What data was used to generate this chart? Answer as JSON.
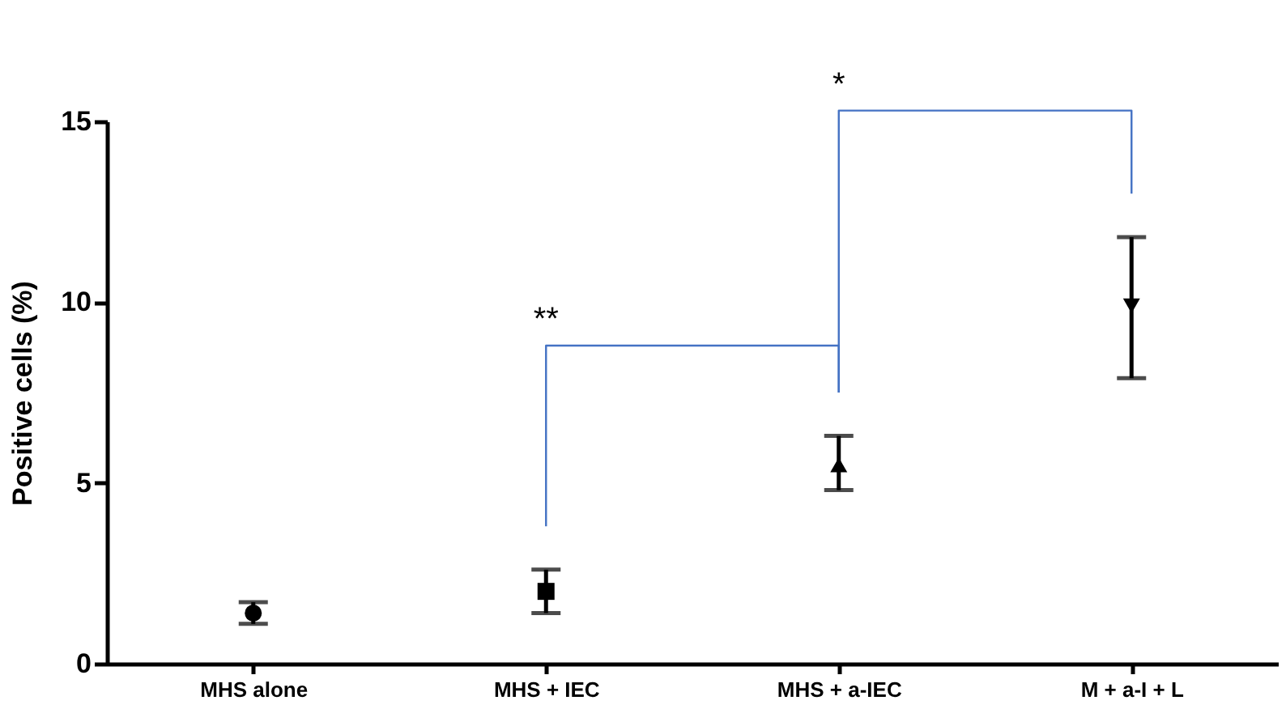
{
  "chart_data": {
    "type": "scatter",
    "ylabel": "Positive cells  (%)",
    "categories": [
      "MHS alone",
      "MHS + IEC",
      "MHS + a-IEC",
      "M + a-I + L"
    ],
    "series": [
      {
        "color": "#000000",
        "marker": "circle",
        "values": [
          1.4,
          null,
          null,
          null
        ],
        "errors": [
          [
            1.1,
            1.7
          ],
          null,
          null,
          null
        ]
      },
      {
        "color": "#000000",
        "marker": "square",
        "values": [
          null,
          2.0,
          null,
          null
        ],
        "errors": [
          null,
          [
            1.4,
            2.6
          ],
          null,
          null
        ]
      },
      {
        "color": "#000000",
        "marker": "triangle",
        "values": [
          null,
          null,
          5.5,
          null
        ],
        "errors": [
          null,
          null,
          [
            4.8,
            6.3
          ],
          null
        ]
      },
      {
        "color": "#000000",
        "marker": "triangle-down",
        "values": [
          null,
          null,
          null,
          9.9
        ],
        "errors": [
          null,
          null,
          null,
          [
            7.9,
            11.8
          ]
        ]
      }
    ],
    "ylim": [
      0,
      15
    ],
    "yticks": [
      0,
      5,
      10,
      15
    ],
    "grid": false,
    "annotations": [
      "**",
      "*"
    ]
  }
}
